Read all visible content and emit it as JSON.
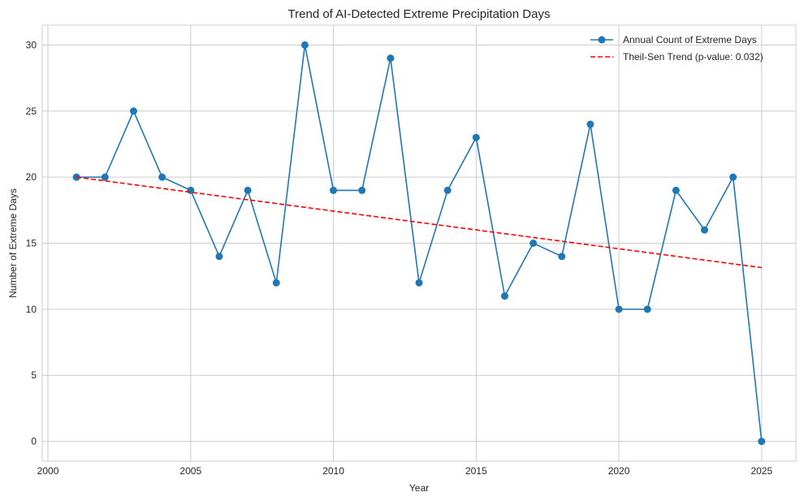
{
  "chart_data": {
    "type": "line",
    "title": "Trend of AI-Detected Extreme Precipitation Days",
    "xlabel": "Year",
    "ylabel": "Number of Extreme Days",
    "xlim": [
      1999.8,
      2026.2
    ],
    "ylim": [
      -1.5,
      31.5
    ],
    "xticks": [
      2000,
      2005,
      2010,
      2015,
      2020,
      2025
    ],
    "yticks": [
      0,
      5,
      10,
      15,
      20,
      25,
      30
    ],
    "grid": true,
    "legend_position": "top-right",
    "series": [
      {
        "name": "Annual Count of Extreme Days",
        "style": "solid-with-markers",
        "color": "#1f77b4",
        "x": [
          2001,
          2002,
          2003,
          2004,
          2005,
          2006,
          2007,
          2008,
          2009,
          2010,
          2011,
          2012,
          2013,
          2014,
          2015,
          2016,
          2017,
          2018,
          2019,
          2020,
          2021,
          2022,
          2023,
          2024,
          2025
        ],
        "y": [
          20,
          20,
          25,
          20,
          19,
          14,
          19,
          12,
          30,
          19,
          19,
          29,
          12,
          19,
          23,
          11,
          15,
          14,
          24,
          10,
          10,
          19,
          16,
          20,
          0
        ]
      },
      {
        "name": "Theil-Sen Trend (p-value: 0.032)",
        "style": "dashed",
        "color": "#ff0000",
        "x": [
          2001,
          2025
        ],
        "y": [
          20.0,
          13.15
        ]
      }
    ]
  }
}
